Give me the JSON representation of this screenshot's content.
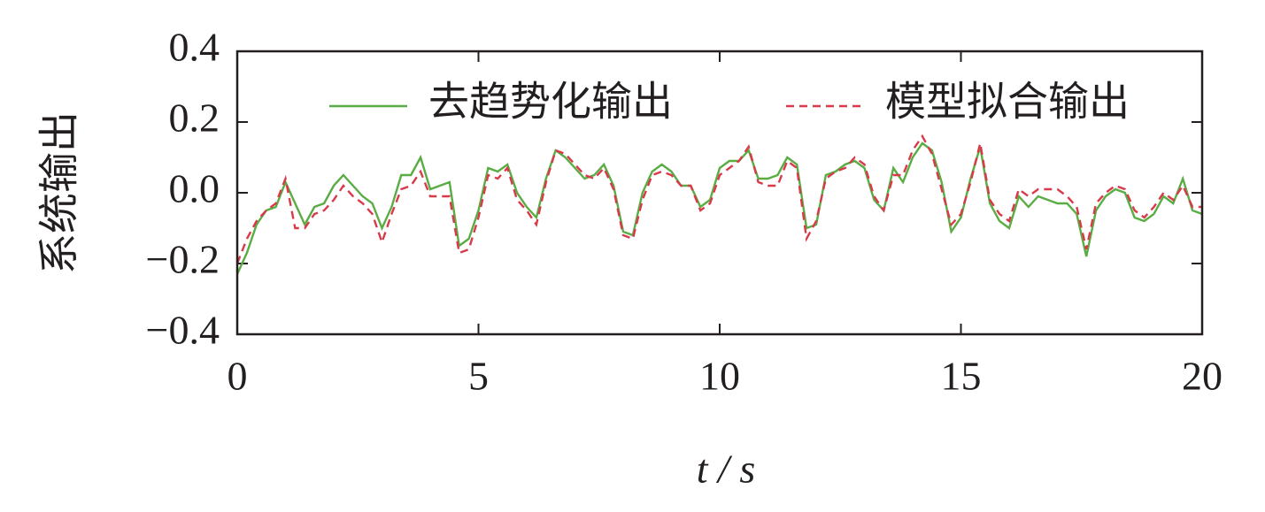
{
  "chart_data": {
    "type": "line",
    "x_label": "t / s",
    "y_label": "系统输出",
    "x": [
      0,
      0.2,
      0.4,
      0.6,
      0.8,
      1,
      1.2,
      1.4,
      1.6,
      1.8,
      2,
      2.2,
      2.4,
      2.6,
      2.8,
      3,
      3.2,
      3.4,
      3.6,
      3.8,
      4,
      4.2,
      4.4,
      4.6,
      4.8,
      5,
      5.2,
      5.4,
      5.6,
      5.8,
      6,
      6.2,
      6.4,
      6.6,
      6.8,
      7,
      7.2,
      7.4,
      7.6,
      7.8,
      8,
      8.2,
      8.4,
      8.6,
      8.8,
      9,
      9.2,
      9.4,
      9.6,
      9.8,
      10,
      10.2,
      10.4,
      10.6,
      10.8,
      11,
      11.2,
      11.4,
      11.6,
      11.8,
      12,
      12.2,
      12.4,
      12.6,
      12.8,
      13,
      13.2,
      13.4,
      13.6,
      13.8,
      14,
      14.2,
      14.4,
      14.6,
      14.8,
      15,
      15.2,
      15.4,
      15.6,
      15.8,
      16,
      16.2,
      16.4,
      16.6,
      16.8,
      17,
      17.2,
      17.4,
      17.6,
      17.8,
      18,
      18.2,
      18.4,
      18.6,
      18.8,
      19,
      19.2,
      19.4,
      19.6,
      19.8,
      20
    ],
    "series": [
      {
        "name": "去趋势化输出",
        "color": "#5aac44",
        "dash": false,
        "values": [
          -0.23,
          -0.17,
          -0.09,
          -0.05,
          -0.04,
          0.03,
          -0.03,
          -0.09,
          -0.04,
          -0.03,
          0.02,
          0.05,
          0.02,
          -0.01,
          -0.03,
          -0.1,
          -0.04,
          0.05,
          0.05,
          0.1,
          0.01,
          0.02,
          0.03,
          -0.15,
          -0.13,
          -0.05,
          0.07,
          0.06,
          0.08,
          0.0,
          -0.04,
          -0.07,
          0.04,
          0.12,
          0.1,
          0.07,
          0.04,
          0.05,
          0.08,
          0.02,
          -0.11,
          -0.12,
          0.0,
          0.06,
          0.08,
          0.06,
          0.02,
          0.02,
          -0.04,
          -0.02,
          0.07,
          0.09,
          0.09,
          0.12,
          0.04,
          0.04,
          0.05,
          0.1,
          0.08,
          -0.1,
          -0.09,
          0.05,
          0.06,
          0.08,
          0.09,
          0.07,
          -0.02,
          -0.05,
          0.07,
          0.03,
          0.1,
          0.14,
          0.12,
          0.03,
          -0.11,
          -0.07,
          0.04,
          0.13,
          -0.03,
          -0.08,
          -0.1,
          -0.01,
          -0.04,
          -0.01,
          -0.02,
          -0.03,
          -0.03,
          -0.06,
          -0.18,
          -0.05,
          -0.01,
          0.01,
          0.0,
          -0.07,
          -0.08,
          -0.06,
          -0.01,
          -0.03,
          0.04,
          -0.05,
          -0.06
        ]
      },
      {
        "name": "模型拟合输出",
        "color": "#d93a4a",
        "dash": true,
        "values": [
          -0.2,
          -0.13,
          -0.08,
          -0.05,
          -0.03,
          0.04,
          -0.1,
          -0.1,
          -0.06,
          -0.05,
          -0.02,
          0.02,
          -0.01,
          -0.03,
          -0.06,
          -0.14,
          -0.06,
          0.01,
          0.02,
          0.06,
          -0.01,
          -0.01,
          -0.01,
          -0.17,
          -0.16,
          -0.07,
          0.05,
          0.04,
          0.07,
          -0.02,
          -0.05,
          -0.09,
          0.03,
          0.12,
          0.11,
          0.08,
          0.05,
          0.04,
          0.07,
          0.01,
          -0.12,
          -0.13,
          -0.02,
          0.05,
          0.06,
          0.05,
          0.02,
          0.02,
          -0.05,
          -0.03,
          0.05,
          0.07,
          0.09,
          0.13,
          0.03,
          0.02,
          0.02,
          0.09,
          0.07,
          -0.13,
          -0.08,
          0.04,
          0.06,
          0.07,
          0.1,
          0.08,
          -0.01,
          -0.05,
          0.05,
          0.05,
          0.12,
          0.16,
          0.11,
          0.01,
          -0.09,
          -0.06,
          0.03,
          0.14,
          -0.02,
          -0.06,
          -0.08,
          0.01,
          -0.01,
          0.01,
          0.01,
          0.01,
          -0.01,
          -0.04,
          -0.16,
          -0.03,
          0.0,
          0.02,
          0.01,
          -0.05,
          -0.07,
          -0.04,
          0.0,
          -0.02,
          0.02,
          -0.04,
          -0.04
        ]
      }
    ],
    "xlim": [
      0,
      20
    ],
    "xticks": [
      0,
      5,
      10,
      15,
      20
    ],
    "ylim": [
      -0.4,
      0.4
    ],
    "yticks": [
      {
        "value": -0.4,
        "label": "−0.4"
      },
      {
        "value": -0.2,
        "label": "−0.2"
      },
      {
        "value": 0,
        "label": "0.0"
      },
      0.2,
      0.4
    ],
    "legend": "top"
  }
}
